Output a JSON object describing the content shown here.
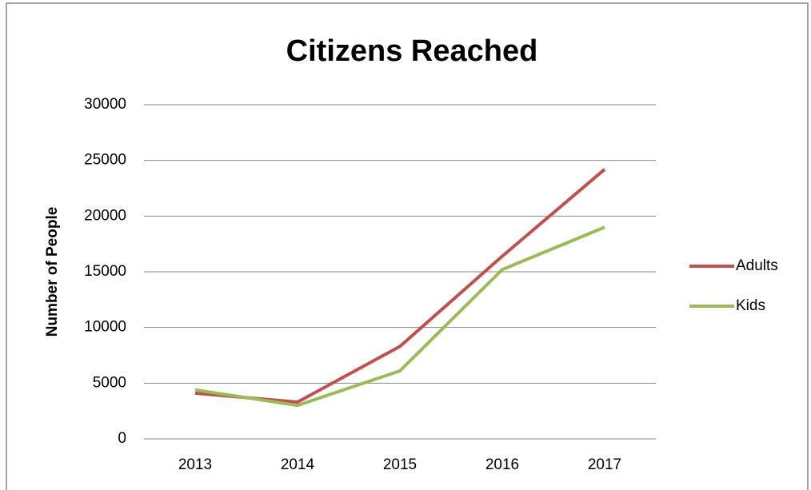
{
  "chart_data": {
    "type": "line",
    "title": "Citizens Reached",
    "y_label": "Number of People",
    "categories": [
      "2013",
      "2014",
      "2015",
      "2016",
      "2017"
    ],
    "series": [
      {
        "name": "Adults",
        "color": "#c0504d",
        "values": [
          4100,
          3300,
          8300,
          16400,
          24200
        ]
      },
      {
        "name": "Kids",
        "color": "#9bbb59",
        "values": [
          4400,
          3000,
          6100,
          15200,
          19000
        ]
      }
    ],
    "ylim": [
      0,
      30000
    ],
    "yticks": [
      0,
      5000,
      10000,
      15000,
      20000,
      25000,
      30000
    ],
    "grid": true,
    "legend": "right"
  }
}
